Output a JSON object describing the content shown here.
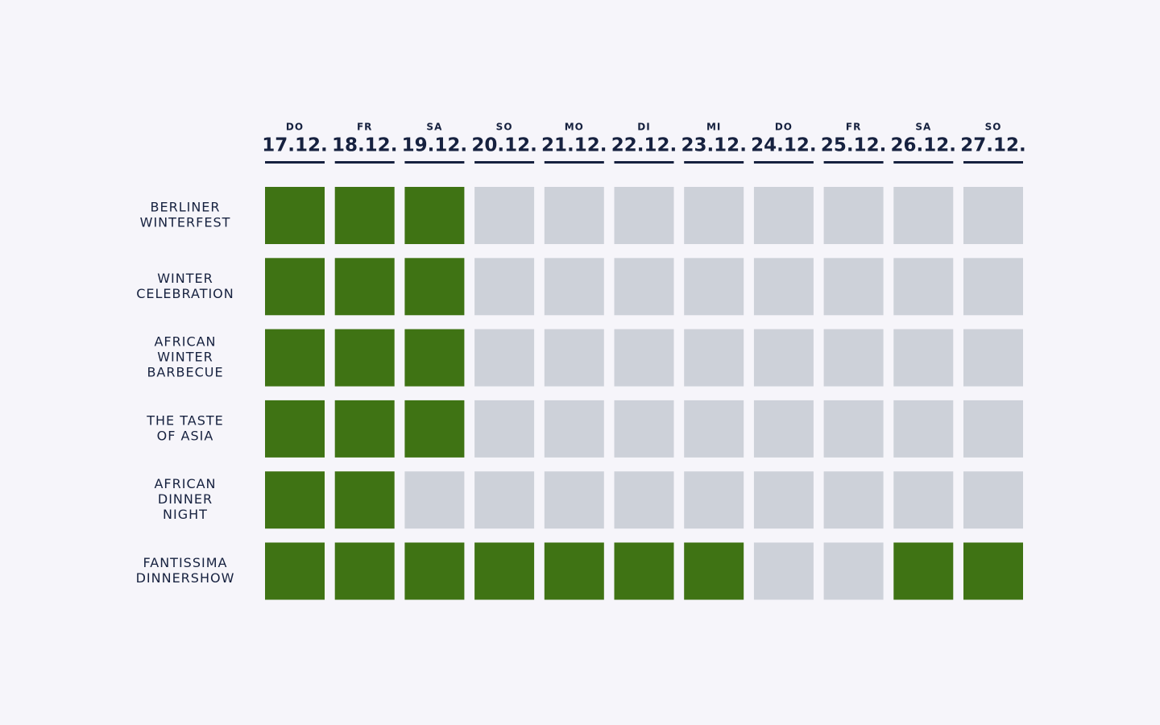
{
  "columns": [
    {
      "day": "DO",
      "date": "17.12."
    },
    {
      "day": "FR",
      "date": "18.12."
    },
    {
      "day": "SA",
      "date": "19.12."
    },
    {
      "day": "SO",
      "date": "20.12."
    },
    {
      "day": "MO",
      "date": "21.12."
    },
    {
      "day": "DI",
      "date": "22.12."
    },
    {
      "day": "MI",
      "date": "23.12."
    },
    {
      "day": "DO",
      "date": "24.12."
    },
    {
      "day": "FR",
      "date": "25.12."
    },
    {
      "day": "SA",
      "date": "26.12."
    },
    {
      "day": "SO",
      "date": "27.12."
    }
  ],
  "rows": [
    {
      "label": [
        "BERLINER",
        "WINTERFEST"
      ],
      "available": [
        true,
        true,
        true,
        false,
        false,
        false,
        false,
        false,
        false,
        false,
        false
      ]
    },
    {
      "label": [
        "WINTER",
        "CELEBRATION"
      ],
      "available": [
        true,
        true,
        true,
        false,
        false,
        false,
        false,
        false,
        false,
        false,
        false
      ]
    },
    {
      "label": [
        "AFRICAN",
        "WINTER",
        "BARBECUE"
      ],
      "available": [
        true,
        true,
        true,
        false,
        false,
        false,
        false,
        false,
        false,
        false,
        false
      ]
    },
    {
      "label": [
        "THE TASTE",
        "OF ASIA"
      ],
      "available": [
        true,
        true,
        true,
        false,
        false,
        false,
        false,
        false,
        false,
        false,
        false
      ]
    },
    {
      "label": [
        "AFRICAN",
        "DINNER",
        "NIGHT"
      ],
      "available": [
        true,
        true,
        false,
        false,
        false,
        false,
        false,
        false,
        false,
        false,
        false
      ]
    },
    {
      "label": [
        "FANTISSIMA",
        "DINNERSHOW"
      ],
      "available": [
        true,
        true,
        true,
        true,
        true,
        true,
        true,
        false,
        false,
        true,
        true
      ]
    }
  ],
  "colors": {
    "available": "#3f7314",
    "unavailable": "#cdd1d9",
    "text": "#16213f"
  }
}
